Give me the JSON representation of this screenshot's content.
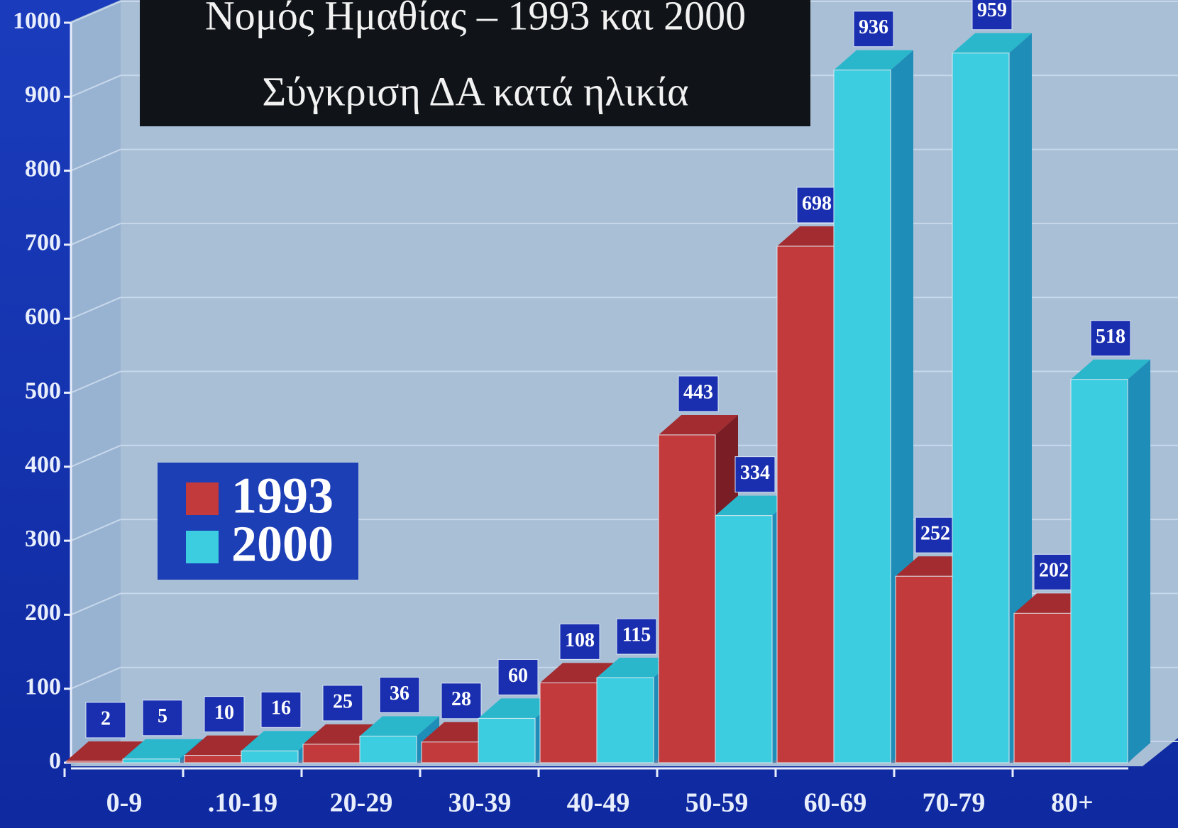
{
  "chart_data": {
    "type": "bar3d",
    "title": "Νομός Ημαθίας – 1993 και 2000",
    "subtitle": "Σύγκριση ΔΑ κατά ηλικία",
    "categories": [
      "0-9",
      ".10-19",
      "20-29",
      "30-39",
      "40-49",
      "50-59",
      "60-69",
      "70-79",
      "80+"
    ],
    "series": [
      {
        "name": "1993",
        "color": "#c23a3c",
        "values": [
          2,
          10,
          25,
          28,
          108,
          443,
          698,
          252,
          202
        ]
      },
      {
        "name": "2000",
        "color": "#3ccde0",
        "values": [
          5,
          16,
          36,
          60,
          115,
          334,
          936,
          959,
          518
        ]
      }
    ],
    "ylim": [
      0,
      1000
    ],
    "yticks": [
      0,
      100,
      200,
      300,
      400,
      500,
      600,
      700,
      800,
      900,
      1000
    ],
    "grid": true
  }
}
